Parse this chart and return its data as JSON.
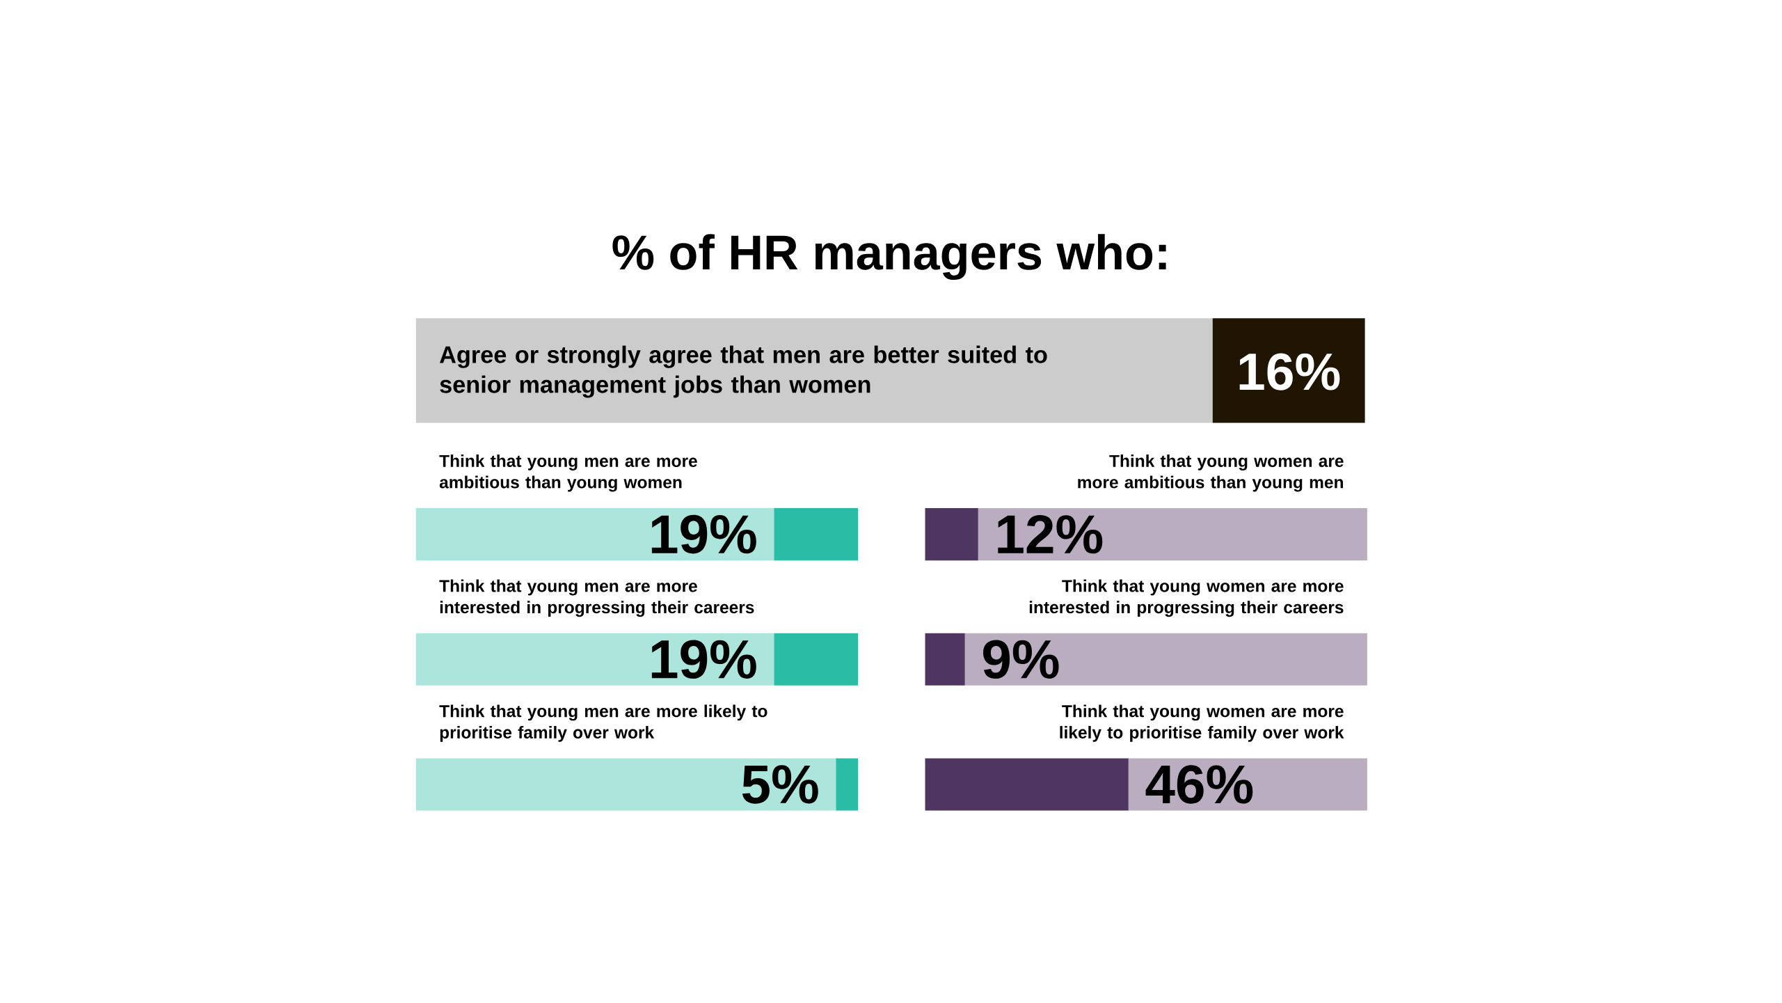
{
  "chart_data": [
    {
      "type": "other",
      "title": "% of HR managers who:",
      "annotations": [
        "Agree or strongly agree that men are better suited to senior management jobs than women",
        "16%"
      ],
      "colors": [
        "#cccccc",
        "#201503"
      ]
    },
    {
      "type": "bar",
      "orientation": "horizontal",
      "stacked": true,
      "xlim": [
        100,
        0
      ],
      "categories": [
        "Think that young men are more ambitious than young women",
        "Think that young men are more interested in progressing their careers",
        "Think that young men are more likely to prioritise family over work"
      ],
      "series": [
        {
          "color": "#2bbca5",
          "values": [
            19,
            19,
            5
          ],
          "value_labels": [
            "19%",
            "19%",
            "5%"
          ]
        },
        {
          "color": "#ace5dc",
          "values": [
            81,
            81,
            95
          ]
        }
      ]
    },
    {
      "type": "bar",
      "orientation": "horizontal",
      "stacked": true,
      "xlim": [
        0,
        100
      ],
      "categories": [
        "Think that young women are more ambitious than young men",
        "Think that young women are more interested in progressing their careers",
        "Think that young women are more likely to prioritise family over work"
      ],
      "series": [
        {
          "color": "#4e3660",
          "values": [
            12,
            9,
            46
          ],
          "value_labels": [
            "12%",
            "9%",
            "46%"
          ]
        },
        {
          "color": "#baadc0",
          "values": [
            88,
            91,
            54
          ]
        }
      ]
    }
  ]
}
